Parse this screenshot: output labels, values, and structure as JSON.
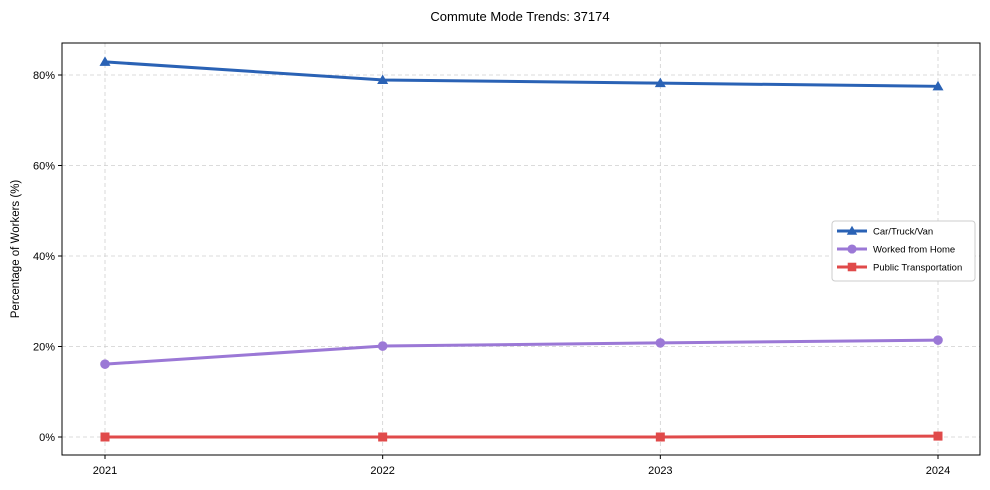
{
  "chart_data": {
    "type": "line",
    "title": "Commute Mode Trends: 37174",
    "xlabel": "",
    "ylabel": "Percentage of Workers (%)",
    "x": [
      "2021",
      "2022",
      "2023",
      "2024"
    ],
    "ylim": [
      -4,
      87
    ],
    "yticks": [
      0,
      20,
      40,
      60,
      80
    ],
    "ytick_labels": [
      "0%",
      "20%",
      "40%",
      "60%",
      "80%"
    ],
    "grid": true,
    "legend_position": "center right",
    "series": [
      {
        "name": "Car/Truck/Van",
        "color": "#2a62b5",
        "marker": "triangle",
        "values": [
          82.9,
          78.9,
          78.2,
          77.5
        ]
      },
      {
        "name": "Worked from Home",
        "color": "#9b78d6",
        "marker": "circle",
        "values": [
          16.1,
          20.1,
          20.8,
          21.4
        ]
      },
      {
        "name": "Public Transportation",
        "color": "#e04a4a",
        "marker": "square",
        "values": [
          0.0,
          0.0,
          0.0,
          0.2
        ]
      }
    ]
  }
}
